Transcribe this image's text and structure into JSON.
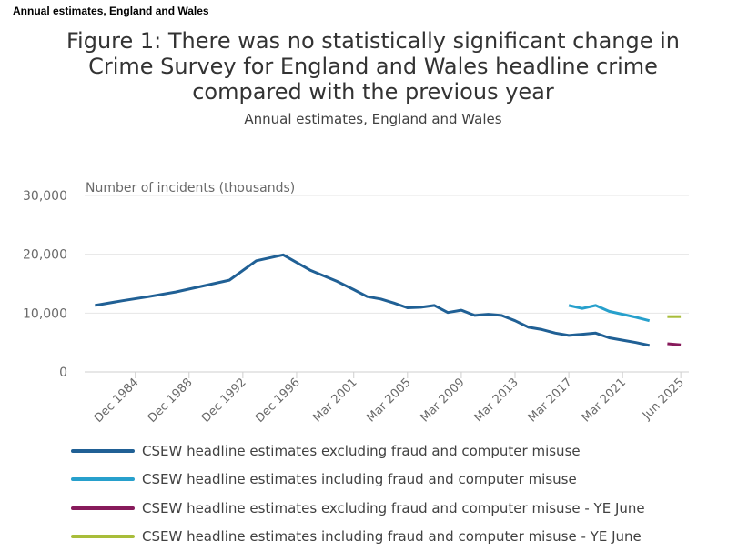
{
  "header_tag": "Annual estimates, England and Wales",
  "chart_data": {
    "type": "line",
    "title": "Figure 1: There was no statistically significant change in Crime Survey for England and Wales headline crime compared with the previous year",
    "subtitle": "Annual estimates, England and Wales",
    "ylabel": "Number of incidents (thousands)",
    "xlabel": "",
    "ylim": [
      0,
      30000
    ],
    "yticks": [
      0,
      10000,
      20000,
      30000
    ],
    "ytick_labels": [
      "0",
      "10,000",
      "20,000",
      "30,000"
    ],
    "xticks": [
      1984.92,
      1988.92,
      1992.92,
      1996.92,
      2001.17,
      2005.17,
      2009.17,
      2013.17,
      2017.17,
      2021.17,
      2025.5
    ],
    "xtick_labels": [
      "Dec 1984",
      "Dec 1988",
      "Dec 1992",
      "Dec 1996",
      "Mar 2001",
      "Mar 2005",
      "Mar 2009",
      "Mar 2013",
      "Mar 2017",
      "Mar 2021",
      "Jun 2025"
    ],
    "xlim": [
      1981,
      2026
    ],
    "grid": true,
    "legend_position": "bottom",
    "series": [
      {
        "name": "CSEW headline estimates excluding fraud and computer misuse",
        "color": "#206095",
        "x": [
          1981.92,
          1983.92,
          1985.92,
          1987.92,
          1989.92,
          1991.92,
          1993.92,
          1995.92,
          1997.92,
          1999.92,
          2001.17,
          2002.17,
          2003.17,
          2004.17,
          2005.17,
          2006.17,
          2007.17,
          2008.17,
          2009.17,
          2010.17,
          2011.17,
          2012.17,
          2013.17,
          2014.17,
          2015.17,
          2016.17,
          2017.17,
          2018.17,
          2019.17,
          2020.17,
          2021.17,
          2022.17,
          2023.17
        ],
        "values": [
          11300,
          12100,
          12800,
          13600,
          14600,
          15600,
          18900,
          19900,
          17300,
          15400,
          14000,
          12800,
          12400,
          11700,
          10900,
          11000,
          11300,
          10100,
          10500,
          9600,
          9800,
          9600,
          8700,
          7600,
          7200,
          6600,
          6200,
          6400,
          6600,
          5800,
          5400,
          5000,
          4500
        ]
      },
      {
        "name": "CSEW headline estimates including fraud and computer misuse",
        "color": "#27a0cc",
        "x": [
          2017.17,
          2018.17,
          2019.17,
          2020.17,
          2021.17,
          2022.17,
          2023.17
        ],
        "values": [
          11300,
          10800,
          11300,
          10300,
          9800,
          9300,
          8700
        ]
      },
      {
        "name": "CSEW headline estimates excluding fraud and computer misuse - YE June",
        "color": "#871a5b",
        "x": [
          2024.5,
          2025.5
        ],
        "values": [
          4800,
          4600
        ]
      },
      {
        "name": "CSEW headline estimates including fraud and computer misuse - YE June",
        "color": "#a8bd3a",
        "x": [
          2024.5,
          2025.5
        ],
        "values": [
          9400,
          9400
        ]
      }
    ]
  }
}
